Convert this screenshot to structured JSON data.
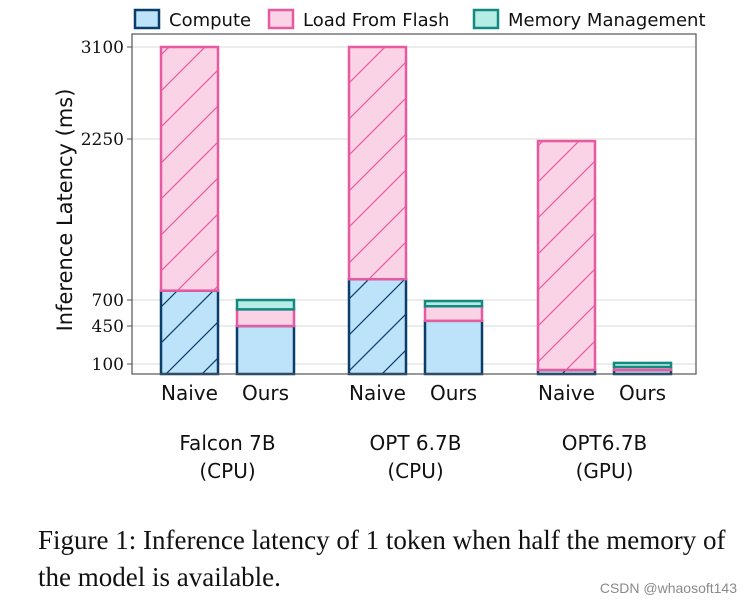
{
  "chart_data": {
    "type": "bar",
    "stacked": true,
    "ylabel": "Inference Latency (ms)",
    "yticks": [
      100,
      450,
      700,
      2250,
      3100
    ],
    "ylim": [
      0,
      3180
    ],
    "legend_position": "top",
    "groups": [
      {
        "label": "Falcon 7B",
        "sublabel": "(CPU)"
      },
      {
        "label": "OPT 6.7B",
        "sublabel": "(CPU)"
      },
      {
        "label": "OPT6.7B",
        "sublabel": "(GPU)"
      }
    ],
    "categories": [
      "Naive",
      "Ours"
    ],
    "series": [
      {
        "name": "Compute",
        "color": "#bde3fa",
        "edge": "#0b3d6b",
        "values": [
          [
            790,
            450
          ],
          [
            900,
            500
          ],
          [
            40,
            40
          ]
        ]
      },
      {
        "name": "Load From Flash",
        "color": "#fbd3e6",
        "edge": "#e85a9f",
        "values": [
          [
            2310,
            160
          ],
          [
            2200,
            140
          ],
          [
            2190,
            30
          ]
        ]
      },
      {
        "name": "Memory Management",
        "color": "#b6ece6",
        "edge": "#138a80",
        "values": [
          [
            0,
            90
          ],
          [
            0,
            50
          ],
          [
            0,
            40
          ]
        ]
      }
    ],
    "hatched": [
      "Naive"
    ]
  },
  "caption": "Figure 1: Inference latency of 1 token when half the memory of the model is available.",
  "watermark": "CSDN @whaosoft143"
}
